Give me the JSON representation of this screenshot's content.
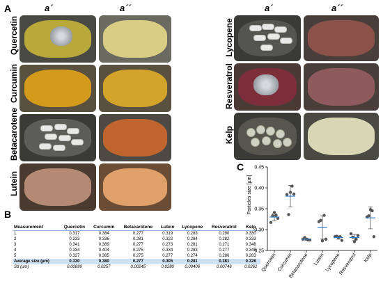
{
  "panels": {
    "a": "A",
    "b": "B",
    "c": "C"
  },
  "column_headers": {
    "col1": "a´",
    "col2": "a´´"
  },
  "left_rows": [
    "Quercetin",
    "Curcumin",
    "Betacarotene",
    "Lutein"
  ],
  "right_rows": [
    "Lycopene",
    "Resveratrol",
    "Kelp"
  ],
  "colors": {
    "quercetin": "#b9a83a",
    "curcumin": "#d39a1c",
    "betacarotene_powder": "#c1652f",
    "lutein": "#e0a06a",
    "lycopene": "#8a5248",
    "resveratrol": "#7e2d3b",
    "kelp": "#d9d6b5",
    "marker_fill": "#3a82c4",
    "mean_line": "#2f7fd0"
  },
  "table": {
    "headers": [
      "Measurement",
      "Quercetin",
      "Curcumin",
      "Betacarotene",
      "Lutein",
      "Lycopene",
      "Resveratrol",
      "Kelp"
    ],
    "rows": [
      [
        "1",
        "0.317",
        "0.384",
        "0.277",
        "0.319",
        "0.283",
        "0.290",
        "0.330"
      ],
      [
        "2",
        "0.333",
        "0.336",
        "0.281",
        "0.322",
        "0.284",
        "0.282",
        "0.333"
      ],
      [
        "3",
        "0.341",
        "0.389",
        "0.277",
        "0.273",
        "0.281",
        "0.271",
        "0.348"
      ],
      [
        "4",
        "0.334",
        "0.404",
        "0.275",
        "0.334",
        "0.283",
        "0.277",
        "0.345"
      ],
      [
        "5",
        "0.327",
        "0.385",
        "0.275",
        "0.277",
        "0.274",
        "0.286",
        "0.283"
      ]
    ],
    "avg_label": "Average size (µm)",
    "avg": [
      "0.330",
      "0.380",
      "0.277",
      "0.305",
      "0.281",
      "0.281",
      "0.328"
    ],
    "sd_label": "Sd (µm)",
    "sd": [
      "0.00899",
      "0.0257",
      "0.00245",
      "0.0280",
      "0.00406",
      "0.00746",
      "0.0262"
    ]
  },
  "chart_data": {
    "type": "scatter",
    "title": "",
    "ylabel": "Particles size [µm]",
    "ylim": [
      0.25,
      0.45
    ],
    "yticks": [
      "0.25",
      "0.30",
      "0.35",
      "0.40",
      "0.45"
    ],
    "categories": [
      "Quercetin",
      "Curcumin",
      "Betacarotene",
      "Lutein",
      "Lycopene",
      "Resveratrol",
      "Kelp"
    ],
    "points": [
      [
        0.317,
        0.333,
        0.341,
        0.334,
        0.327
      ],
      [
        0.384,
        0.336,
        0.389,
        0.404,
        0.385
      ],
      [
        0.277,
        0.281,
        0.277,
        0.275,
        0.275
      ],
      [
        0.319,
        0.322,
        0.273,
        0.334,
        0.277
      ],
      [
        0.283,
        0.284,
        0.281,
        0.283,
        0.274
      ],
      [
        0.29,
        0.282,
        0.271,
        0.277,
        0.286
      ],
      [
        0.33,
        0.333,
        0.348,
        0.345,
        0.283
      ]
    ],
    "means": [
      0.33,
      0.38,
      0.277,
      0.305,
      0.281,
      0.281,
      0.328
    ],
    "sd": [
      0.00899,
      0.0257,
      0.00245,
      0.028,
      0.00406,
      0.00746,
      0.0262
    ],
    "grid": false
  }
}
